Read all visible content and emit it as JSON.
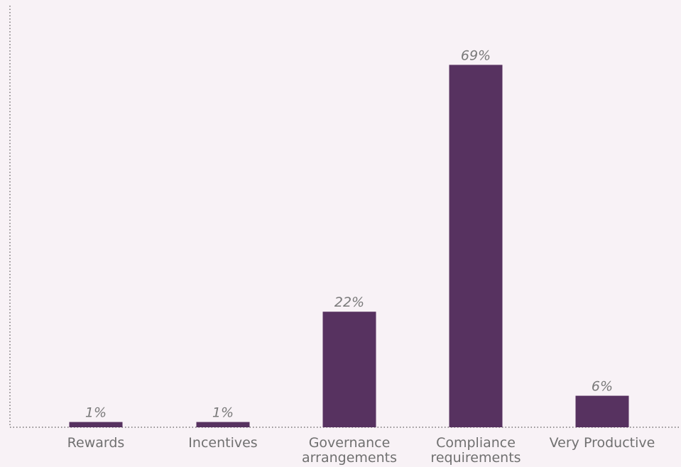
{
  "chart_data": {
    "type": "bar",
    "categories": [
      [
        "Rewards"
      ],
      [
        "Incentives"
      ],
      [
        "Governance",
        "arrangements"
      ],
      [
        "Compliance",
        "requirements"
      ],
      [
        "Very Productive"
      ]
    ],
    "values": [
      1,
      1,
      22,
      69,
      6
    ],
    "value_labels": [
      "1%",
      "1%",
      "22%",
      "69%",
      "6%"
    ],
    "value_unit": "%",
    "title": "",
    "xlabel": "",
    "ylabel": "",
    "ylim": [
      0,
      80
    ],
    "grid": false,
    "legend": "none",
    "colors": {
      "bar": "#573260",
      "axis": "#333333",
      "background": "#f8f2f6"
    }
  }
}
